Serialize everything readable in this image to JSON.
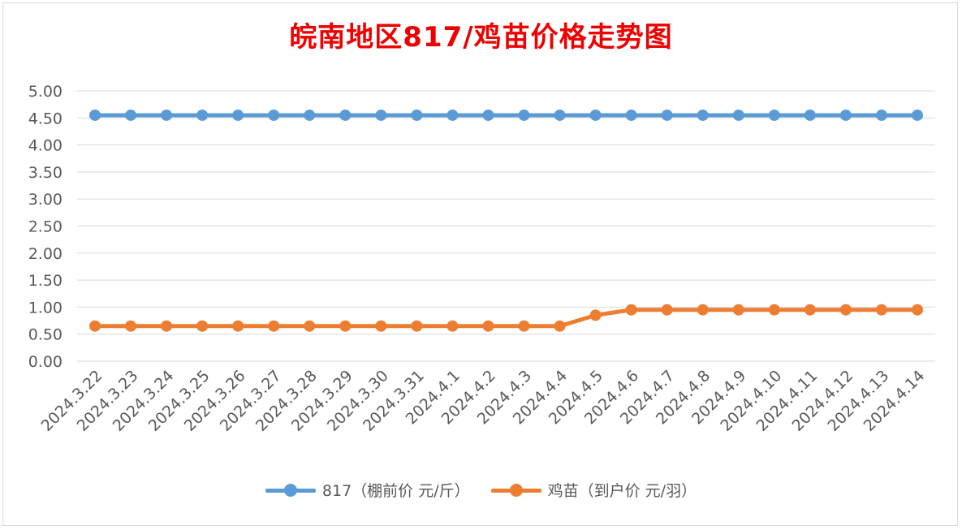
{
  "colors": {
    "title": "#ee0000",
    "series1": "#5b9bd5",
    "series2": "#ed7d31",
    "grid": "#d9d9d9",
    "text": "#595959"
  },
  "chart_data": {
    "type": "line",
    "title": "皖南地区817/鸡苗价格走势图",
    "xlabel": "",
    "ylabel": "",
    "ylim": [
      0,
      5
    ],
    "yticks": [
      "0.00",
      "0.50",
      "1.00",
      "1.50",
      "2.00",
      "2.50",
      "3.00",
      "3.50",
      "4.00",
      "4.50",
      "5.00"
    ],
    "grid": true,
    "legend_position": "bottom",
    "categories": [
      "2024.3.22",
      "2024.3.23",
      "2024.3.24",
      "2024.3.25",
      "2024.3.26",
      "2024.3.27",
      "2024.3.28",
      "2024.3.29",
      "2024.3.30",
      "2024.3.31",
      "2024.4.1",
      "2024.4.2",
      "2024.4.3",
      "2024.4.4",
      "2024.4.5",
      "2024.4.6",
      "2024.4.7",
      "2024.4.8",
      "2024.4.9",
      "2024.4.10",
      "2024.4.11",
      "2024.4.12",
      "2024.4.13",
      "2024.4.14"
    ],
    "series": [
      {
        "name": "817（棚前价 元/斤）",
        "color": "#5b9bd5",
        "values": [
          4.55,
          4.55,
          4.55,
          4.55,
          4.55,
          4.55,
          4.55,
          4.55,
          4.55,
          4.55,
          4.55,
          4.55,
          4.55,
          4.55,
          4.55,
          4.55,
          4.55,
          4.55,
          4.55,
          4.55,
          4.55,
          4.55,
          4.55,
          4.55
        ]
      },
      {
        "name": "鸡苗（到户价 元/羽）",
        "color": "#ed7d31",
        "values": [
          0.65,
          0.65,
          0.65,
          0.65,
          0.65,
          0.65,
          0.65,
          0.65,
          0.65,
          0.65,
          0.65,
          0.65,
          0.65,
          0.65,
          0.85,
          0.95,
          0.95,
          0.95,
          0.95,
          0.95,
          0.95,
          0.95,
          0.95,
          0.95
        ]
      }
    ]
  }
}
